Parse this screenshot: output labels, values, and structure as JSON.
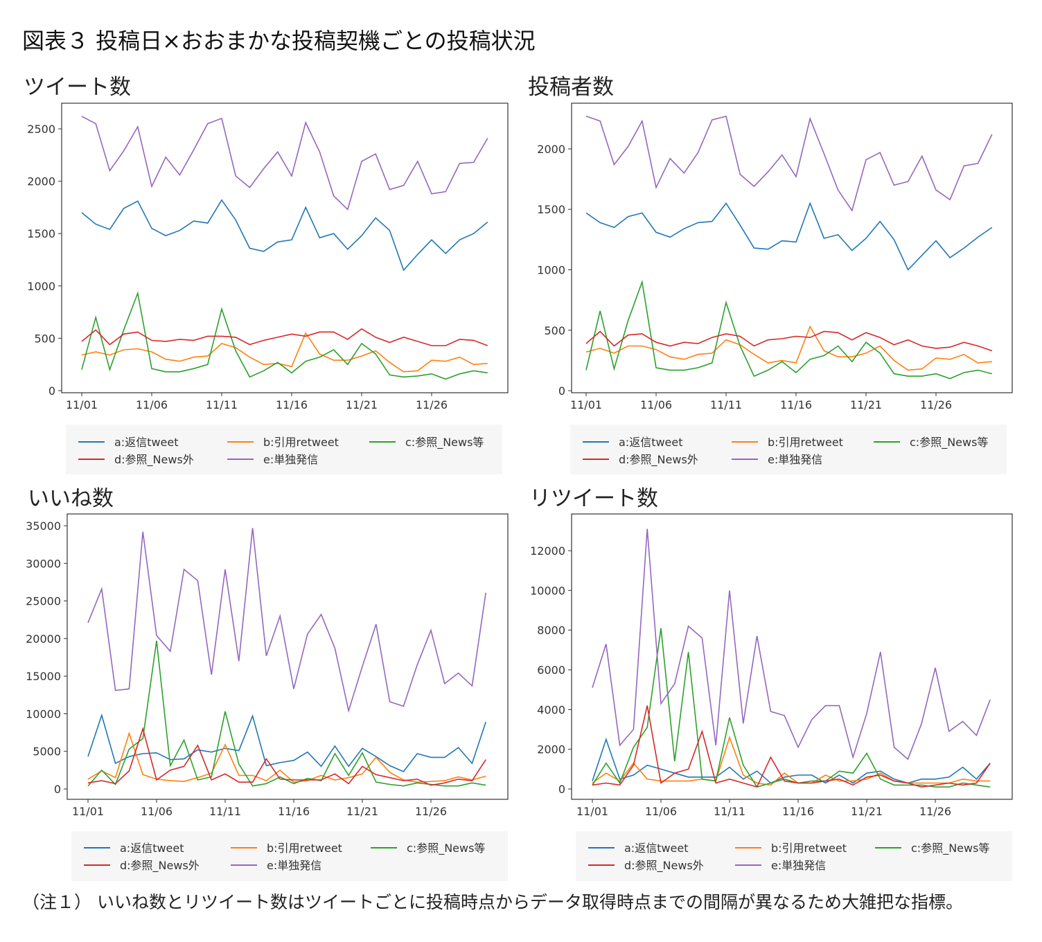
{
  "title": "図表３ 投稿日×おおまかな投稿契機ごとの投稿状況",
  "note": "（注１） いいね数とリツイート数はツイートごとに投稿時点からデータ取得時点までの間隔が異なるため大雑把な指標。",
  "colors": {
    "a": "#1f77b4",
    "b": "#ff7f0e",
    "c": "#2ca02c",
    "d": "#d62728",
    "e": "#9467bd"
  },
  "chart_data": [
    {
      "type": "line",
      "title": "ツイート数",
      "x": [
        "11/01",
        "11/02",
        "11/03",
        "11/04",
        "11/05",
        "11/06",
        "11/07",
        "11/08",
        "11/09",
        "11/10",
        "11/11",
        "11/12",
        "11/13",
        "11/14",
        "11/15",
        "11/16",
        "11/17",
        "11/18",
        "11/19",
        "11/20",
        "11/21",
        "11/22",
        "11/23",
        "11/24",
        "11/25",
        "11/26",
        "11/27",
        "11/28",
        "11/29",
        "11/30"
      ],
      "xticks": [
        "11/01",
        "11/06",
        "11/11",
        "11/16",
        "11/21",
        "11/26"
      ],
      "yticks": [
        "0",
        "500",
        "1000",
        "1500",
        "2000",
        "2500"
      ],
      "ylim": [
        -20,
        2745
      ],
      "legend": "bottom",
      "series": [
        {
          "key": "a",
          "name": "a:返信tweet",
          "values": [
            1700,
            1590,
            1540,
            1740,
            1810,
            1550,
            1480,
            1530,
            1620,
            1600,
            1820,
            1630,
            1360,
            1330,
            1420,
            1440,
            1750,
            1460,
            1500,
            1350,
            1480,
            1650,
            1530,
            1150,
            1300,
            1440,
            1310,
            1440,
            1500,
            1610
          ]
        },
        {
          "key": "b",
          "name": "b:引用retweet",
          "values": [
            340,
            370,
            340,
            390,
            400,
            370,
            300,
            280,
            320,
            330,
            450,
            410,
            320,
            250,
            260,
            230,
            550,
            350,
            290,
            290,
            330,
            380,
            270,
            180,
            190,
            290,
            280,
            320,
            250,
            260
          ]
        },
        {
          "key": "c",
          "name": "c:参照_News等",
          "values": [
            200,
            700,
            200,
            580,
            930,
            210,
            180,
            180,
            210,
            250,
            780,
            380,
            130,
            190,
            270,
            170,
            280,
            320,
            390,
            250,
            450,
            350,
            150,
            130,
            140,
            160,
            110,
            160,
            190,
            170
          ]
        },
        {
          "key": "d",
          "name": "d:参照_News外",
          "values": [
            470,
            580,
            440,
            540,
            560,
            480,
            470,
            490,
            480,
            520,
            520,
            510,
            440,
            480,
            510,
            540,
            520,
            560,
            560,
            490,
            590,
            510,
            460,
            510,
            470,
            430,
            430,
            490,
            480,
            430
          ]
        },
        {
          "key": "e",
          "name": "e:単独発信",
          "values": [
            2620,
            2550,
            2100,
            2290,
            2520,
            1950,
            2230,
            2060,
            2300,
            2550,
            2600,
            2050,
            1940,
            2120,
            2280,
            2050,
            2560,
            2280,
            1860,
            1730,
            2190,
            2260,
            1920,
            1960,
            2190,
            1880,
            1900,
            2170,
            2180,
            2410
          ]
        }
      ]
    },
    {
      "type": "line",
      "title": "投稿者数",
      "x": [
        "11/01",
        "11/02",
        "11/03",
        "11/04",
        "11/05",
        "11/06",
        "11/07",
        "11/08",
        "11/09",
        "11/10",
        "11/11",
        "11/12",
        "11/13",
        "11/14",
        "11/15",
        "11/16",
        "11/17",
        "11/18",
        "11/19",
        "11/20",
        "11/21",
        "11/22",
        "11/23",
        "11/24",
        "11/25",
        "11/26",
        "11/27",
        "11/28",
        "11/29",
        "11/30"
      ],
      "xticks": [
        "11/01",
        "11/06",
        "11/11",
        "11/16",
        "11/21",
        "11/26"
      ],
      "yticks": [
        "0",
        "500",
        "1000",
        "1500",
        "2000"
      ],
      "ylim": [
        -17,
        2378
      ],
      "legend": "bottom",
      "series": [
        {
          "key": "a",
          "name": "a:返信tweet",
          "values": [
            1470,
            1390,
            1350,
            1440,
            1470,
            1310,
            1270,
            1340,
            1390,
            1400,
            1550,
            1370,
            1180,
            1170,
            1240,
            1230,
            1550,
            1260,
            1290,
            1160,
            1260,
            1400,
            1250,
            1000,
            1120,
            1240,
            1100,
            1180,
            1270,
            1350
          ]
        },
        {
          "key": "b",
          "name": "b:引用retweet",
          "values": [
            320,
            350,
            310,
            370,
            370,
            340,
            280,
            260,
            300,
            310,
            420,
            380,
            300,
            230,
            250,
            230,
            530,
            330,
            280,
            280,
            310,
            370,
            250,
            170,
            180,
            270,
            260,
            300,
            230,
            240
          ]
        },
        {
          "key": "c",
          "name": "c:参照_News等",
          "values": [
            170,
            660,
            180,
            580,
            900,
            190,
            170,
            170,
            190,
            230,
            730,
            370,
            120,
            170,
            240,
            150,
            260,
            290,
            370,
            240,
            400,
            310,
            140,
            120,
            120,
            140,
            100,
            150,
            170,
            140
          ]
        },
        {
          "key": "d",
          "name": "d:参照_News外",
          "values": [
            390,
            490,
            370,
            460,
            470,
            400,
            370,
            400,
            390,
            440,
            470,
            450,
            370,
            420,
            430,
            450,
            440,
            490,
            480,
            420,
            480,
            440,
            380,
            420,
            370,
            350,
            360,
            400,
            370,
            330
          ]
        },
        {
          "key": "e",
          "name": "e:単独発信",
          "values": [
            2270,
            2230,
            1870,
            2020,
            2230,
            1680,
            1920,
            1800,
            1970,
            2240,
            2270,
            1790,
            1690,
            1810,
            1950,
            1770,
            2250,
            1960,
            1660,
            1490,
            1910,
            1970,
            1700,
            1730,
            1940,
            1660,
            1580,
            1860,
            1880,
            2120
          ]
        }
      ]
    },
    {
      "type": "line",
      "title": "いいね数",
      "x": [
        "11/01",
        "11/02",
        "11/03",
        "11/04",
        "11/05",
        "11/06",
        "11/07",
        "11/08",
        "11/09",
        "11/10",
        "11/11",
        "11/12",
        "11/13",
        "11/14",
        "11/15",
        "11/16",
        "11/17",
        "11/18",
        "11/19",
        "11/20",
        "11/21",
        "11/22",
        "11/23",
        "11/24",
        "11/25",
        "11/26",
        "11/27",
        "11/28",
        "11/29",
        "11/30"
      ],
      "xticks": [
        "11/01",
        "11/06",
        "11/11",
        "11/16",
        "11/21",
        "11/26"
      ],
      "yticks": [
        "0",
        "5000",
        "10000",
        "15000",
        "20000",
        "25000",
        "30000",
        "35000"
      ],
      "ylim": [
        -1380,
        36570
      ],
      "legend": "bottom",
      "series": [
        {
          "key": "a",
          "name": "a:返信tweet",
          "values": [
            4300,
            9800,
            3400,
            4300,
            4700,
            4800,
            3900,
            4000,
            5200,
            4900,
            5400,
            5100,
            9700,
            3100,
            3500,
            3800,
            4900,
            3000,
            5700,
            3000,
            5400,
            4300,
            3100,
            2300,
            4700,
            4200,
            4200,
            5500,
            3400,
            8900
          ]
        },
        {
          "key": "b",
          "name": "b:引用retweet",
          "values": [
            1300,
            2400,
            1500,
            7400,
            1900,
            1300,
            1100,
            1000,
            1500,
            2100,
            5900,
            1800,
            1800,
            1100,
            2500,
            900,
            1100,
            1800,
            1200,
            1500,
            2000,
            4200,
            2200,
            1200,
            900,
            1000,
            1100,
            1600,
            1200,
            1700
          ]
        },
        {
          "key": "c",
          "name": "c:参照_News等",
          "values": [
            400,
            2500,
            600,
            5300,
            6700,
            19700,
            3100,
            6500,
            1200,
            1600,
            10300,
            3300,
            400,
            700,
            1600,
            700,
            1400,
            1100,
            4700,
            1800,
            4800,
            900,
            600,
            400,
            800,
            600,
            400,
            400,
            800,
            500
          ]
        },
        {
          "key": "d",
          "name": "d:参照_News外",
          "values": [
            800,
            1100,
            700,
            2400,
            8000,
            1200,
            2500,
            3000,
            5800,
            1200,
            2000,
            900,
            900,
            4000,
            1300,
            1200,
            1200,
            1200,
            2000,
            700,
            3000,
            1900,
            1500,
            1100,
            1300,
            500,
            800,
            1300,
            1100,
            3900
          ]
        },
        {
          "key": "e",
          "name": "e:単独発信",
          "values": [
            22100,
            26600,
            13100,
            13300,
            34200,
            20400,
            18300,
            29200,
            27700,
            15200,
            29200,
            17000,
            34700,
            17700,
            23000,
            13300,
            20600,
            23200,
            18700,
            10400,
            16300,
            21900,
            11600,
            11000,
            16500,
            21100,
            14000,
            15400,
            13700,
            26100
          ]
        }
      ]
    },
    {
      "type": "line",
      "title": "リツイート数",
      "x": [
        "11/01",
        "11/02",
        "11/03",
        "11/04",
        "11/05",
        "11/06",
        "11/07",
        "11/08",
        "11/09",
        "11/10",
        "11/11",
        "11/12",
        "11/13",
        "11/14",
        "11/15",
        "11/16",
        "11/17",
        "11/18",
        "11/19",
        "11/20",
        "11/21",
        "11/22",
        "11/23",
        "11/24",
        "11/25",
        "11/26",
        "11/27",
        "11/28",
        "11/29",
        "11/30"
      ],
      "xticks": [
        "11/01",
        "11/06",
        "11/11",
        "11/16",
        "11/21",
        "11/26"
      ],
      "yticks": [
        "0",
        "2000",
        "4000",
        "6000",
        "8000",
        "10000",
        "12000"
      ],
      "ylim": [
        -520,
        13850
      ],
      "legend": "bottom",
      "series": [
        {
          "key": "a",
          "name": "a:返信tweet",
          "values": [
            400,
            2500,
            500,
            700,
            1200,
            1000,
            800,
            600,
            600,
            600,
            1100,
            500,
            900,
            300,
            600,
            700,
            700,
            300,
            700,
            300,
            800,
            900,
            500,
            300,
            500,
            500,
            600,
            1100,
            500,
            1300
          ]
        },
        {
          "key": "b",
          "name": "b:引用retweet",
          "values": [
            300,
            800,
            400,
            1300,
            500,
            400,
            400,
            400,
            500,
            400,
            2600,
            700,
            300,
            200,
            800,
            300,
            300,
            700,
            400,
            400,
            500,
            800,
            400,
            300,
            300,
            300,
            300,
            500,
            400,
            400
          ]
        },
        {
          "key": "c",
          "name": "c:参照_News等",
          "values": [
            200,
            1300,
            300,
            2100,
            3100,
            8100,
            1400,
            6900,
            500,
            400,
            3600,
            1200,
            100,
            300,
            500,
            300,
            400,
            400,
            900,
            800,
            1800,
            500,
            200,
            200,
            200,
            100,
            100,
            300,
            200,
            100
          ]
        },
        {
          "key": "d",
          "name": "d:参照_News外",
          "values": [
            200,
            300,
            200,
            1200,
            4200,
            300,
            800,
            1000,
            2900,
            300,
            500,
            300,
            100,
            1600,
            400,
            300,
            300,
            400,
            500,
            200,
            600,
            700,
            400,
            300,
            100,
            200,
            300,
            200,
            300,
            1300
          ]
        },
        {
          "key": "e",
          "name": "e:単独発信",
          "values": [
            5100,
            7300,
            2200,
            3000,
            13100,
            4300,
            5300,
            8200,
            7600,
            2200,
            10000,
            3300,
            7700,
            3900,
            3700,
            2100,
            3500,
            4200,
            4200,
            1600,
            3800,
            6900,
            2100,
            1500,
            3300,
            6100,
            2900,
            3400,
            2700,
            4500
          ]
        }
      ]
    }
  ]
}
